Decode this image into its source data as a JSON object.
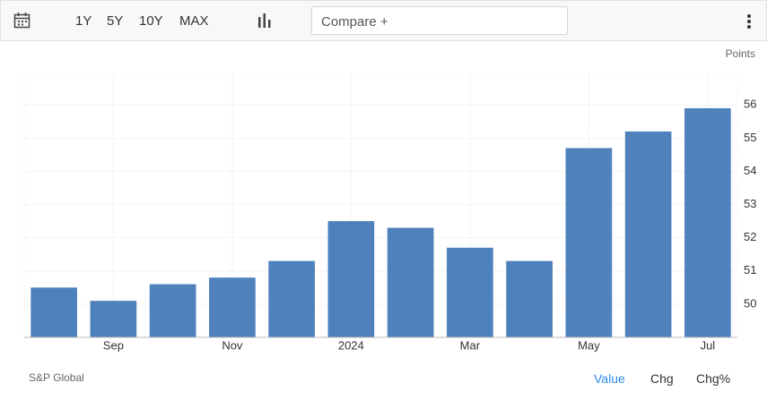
{
  "toolbar": {
    "ranges": [
      "1Y",
      "5Y",
      "10Y",
      "MAX"
    ],
    "compare": "Compare +"
  },
  "chart_data": {
    "type": "bar",
    "unit": "Points",
    "categories": [
      null,
      "Sep",
      null,
      "Nov",
      null,
      "2024",
      null,
      "Mar",
      null,
      "May",
      null,
      "Jul"
    ],
    "values": [
      50.5,
      50.1,
      50.6,
      50.8,
      51.3,
      52.5,
      52.3,
      51.7,
      51.3,
      54.7,
      55.2,
      55.9
    ],
    "color": "#4f81bd",
    "ylim": [
      49,
      56.95
    ],
    "yticks": [
      50,
      51,
      52,
      53,
      54,
      55,
      56
    ],
    "grid": true
  },
  "footer": {
    "source": "S&P Global",
    "tabs": [
      "Value",
      "Chg",
      "Chg%"
    ]
  }
}
